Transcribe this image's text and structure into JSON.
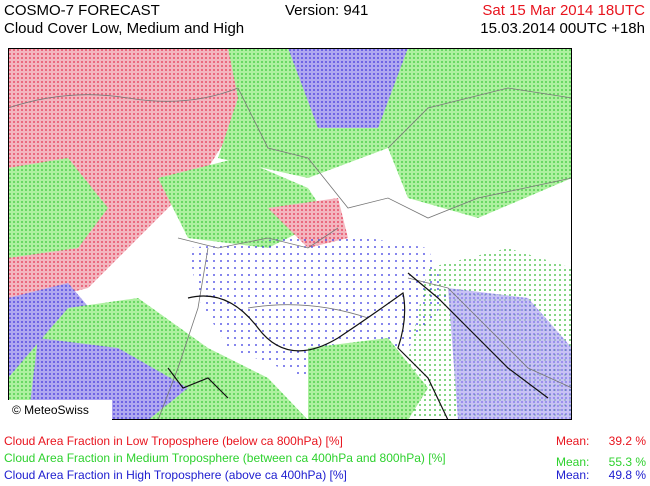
{
  "header": {
    "title": "COSMO-7 FORECAST",
    "subtitle": "Cloud Cover Low, Medium and High",
    "version": "Version: 941",
    "valid_time": "Sat 15 Mar 2014 18UTC",
    "run_time": "15.03.2014 00UTC +18h",
    "valid_time_color": "#e8141e"
  },
  "map": {
    "credit": "© MeteoSwiss"
  },
  "legend": {
    "rows": [
      {
        "label": "Cloud Area Fraction in Low Troposphere (below ca 800hPa) [%]",
        "mean_label": "Mean:",
        "mean": "39.2 %",
        "color": "#e8141e"
      },
      {
        "label": "Cloud Area Fraction in Medium Troposphere (between ca 400hPa and 800hPa) [%]",
        "mean_label": "Mean:",
        "mean": "55.3 %",
        "color": "#2ed12e"
      },
      {
        "label": "Cloud Area Fraction in High Troposphere (above ca 400hPa) [%]",
        "mean_label": "Mean:",
        "mean": "49.8 %",
        "color": "#2020d0"
      }
    ]
  }
}
